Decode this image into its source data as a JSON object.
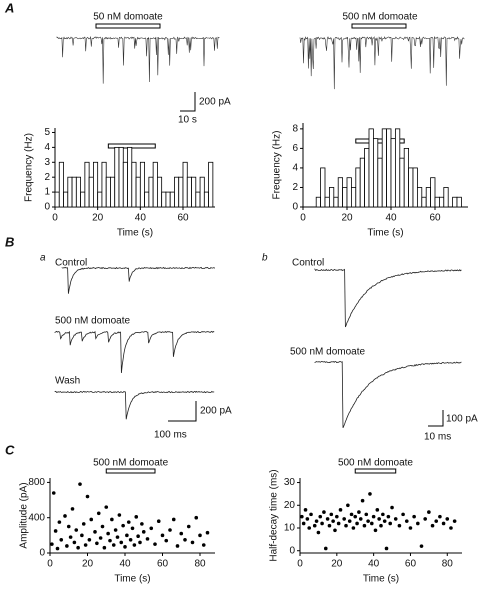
{
  "figure": {
    "panel_labels": [
      "A",
      "B",
      "C"
    ],
    "sub_labels": [
      "a",
      "b"
    ],
    "trace_labels": [
      "50 nM domoate",
      "500 nM domoate",
      "Control",
      "500 nM domoate",
      "Wash",
      "Control",
      "500 nM domoate"
    ],
    "scale_bars": [
      "200 pA",
      "10 s",
      "200 pA",
      "100 ms",
      "100 pA",
      "10 ms"
    ]
  },
  "chart_data": [
    {
      "type": "histogram",
      "x_label": "Time (s)",
      "y_label": "Frequency (Hz)",
      "bins": [
        0,
        2,
        4,
        6,
        8,
        10,
        12,
        14,
        16,
        18,
        20,
        22,
        24,
        26,
        28,
        30,
        32,
        34,
        36,
        38,
        40,
        42,
        44,
        46,
        48,
        50,
        52,
        54,
        56,
        58,
        60,
        62,
        64,
        66,
        68,
        70,
        72,
        74
      ],
      "values": [
        1,
        3,
        1,
        2,
        2,
        2,
        1,
        3,
        2,
        3,
        1,
        3,
        2,
        2,
        4,
        4,
        3,
        4,
        3,
        2,
        3,
        1,
        2,
        3,
        2,
        1,
        1,
        1,
        2,
        2,
        3,
        2,
        2,
        1,
        2,
        1,
        3
      ],
      "application": [
        25,
        47
      ],
      "xlim": [
        0,
        75
      ],
      "xticks": [
        0,
        20,
        40,
        60
      ],
      "ylim": [
        0,
        5.3
      ],
      "yticks": [
        0,
        1,
        2,
        3,
        4,
        5
      ]
    },
    {
      "type": "histogram",
      "x_label": "Time (s)",
      "y_label": "Frequency (Hz)",
      "bins": [
        0,
        2,
        4,
        6,
        8,
        10,
        12,
        14,
        16,
        18,
        20,
        22,
        24,
        26,
        28,
        30,
        32,
        34,
        36,
        38,
        40,
        42,
        44,
        46,
        48,
        50,
        52,
        54,
        56,
        58,
        60,
        62,
        64,
        66,
        68,
        70,
        72
      ],
      "values": [
        0,
        0,
        0,
        1,
        4,
        1,
        2,
        1,
        3,
        2,
        3,
        2,
        4,
        5,
        6,
        8,
        7,
        5,
        8,
        8,
        7,
        8,
        5,
        6,
        4,
        4,
        2,
        1,
        2,
        3,
        1,
        1,
        2,
        0,
        1,
        1
      ],
      "application": [
        24,
        46
      ],
      "xlim": [
        0,
        75
      ],
      "xticks": [
        0,
        20,
        40,
        60
      ],
      "ylim": [
        0,
        8.6
      ],
      "yticks": [
        0,
        2,
        4,
        6,
        8
      ]
    },
    {
      "type": "scatter",
      "x_label": "Time (s)",
      "y_label": "Amplitude (pA)",
      "annotation": "500 nM domoate",
      "application": [
        30,
        56
      ],
      "x": [
        1,
        2,
        3,
        4,
        5,
        6,
        8,
        9,
        10,
        11,
        12,
        13,
        14,
        15,
        16,
        17,
        18,
        19,
        20,
        21,
        22,
        24,
        25,
        26,
        27,
        28,
        29,
        30,
        31,
        32,
        33,
        34,
        35,
        36,
        37,
        38,
        39,
        40,
        41,
        42,
        43,
        44,
        45,
        46,
        47,
        48,
        49,
        50,
        52,
        54,
        56,
        58,
        60,
        62,
        64,
        66,
        68,
        70,
        72,
        74,
        76,
        78,
        80,
        82,
        84
      ],
      "y": [
        100,
        680,
        250,
        50,
        350,
        150,
        420,
        80,
        300,
        180,
        500,
        120,
        260,
        60,
        780,
        200,
        330,
        90,
        640,
        150,
        380,
        240,
        110,
        450,
        170,
        300,
        60,
        520,
        220,
        140,
        380,
        90,
        260,
        180,
        430,
        120,
        310,
        70,
        200,
        350,
        150,
        280,
        90,
        410,
        190,
        120,
        330,
        240,
        160,
        280,
        100,
        360,
        200,
        140,
        260,
        380,
        80,
        220,
        150,
        300,
        120,
        400,
        200,
        90,
        230
      ],
      "xlim": [
        0,
        88
      ],
      "xticks": [
        0,
        20,
        40,
        60,
        80
      ],
      "ylim": [
        0,
        850
      ],
      "yticks": [
        0,
        400,
        800
      ]
    },
    {
      "type": "scatter",
      "x_label": "Time (s)",
      "y_label": "Half-decay time (ms)",
      "annotation": "500 nM domoate",
      "application": [
        30,
        52
      ],
      "x": [
        1,
        2,
        3,
        4,
        5,
        6,
        8,
        9,
        10,
        11,
        12,
        13,
        14,
        15,
        16,
        17,
        18,
        19,
        20,
        21,
        22,
        24,
        25,
        26,
        27,
        28,
        29,
        30,
        31,
        32,
        33,
        34,
        35,
        36,
        37,
        38,
        39,
        40,
        41,
        42,
        43,
        44,
        45,
        46,
        47,
        48,
        49,
        50,
        52,
        54,
        56,
        58,
        60,
        62,
        64,
        66,
        68,
        70,
        72,
        74,
        76,
        78,
        80,
        82,
        84
      ],
      "y": [
        15,
        12,
        18,
        14,
        10,
        16,
        11,
        13,
        8,
        15,
        12,
        17,
        1,
        14,
        11,
        16,
        13,
        9,
        15,
        12,
        18,
        14,
        11,
        20,
        13,
        16,
        10,
        15,
        12,
        17,
        14,
        22,
        11,
        16,
        13,
        25,
        12,
        15,
        9,
        18,
        14,
        11,
        16,
        13,
        1,
        15,
        12,
        19,
        14,
        11,
        16,
        13,
        10,
        15,
        12,
        2,
        14,
        17,
        11,
        13,
        15,
        12,
        14,
        10,
        13
      ],
      "xlim": [
        0,
        88
      ],
      "xticks": [
        0,
        20,
        40,
        60,
        80
      ],
      "ylim": [
        -1,
        32
      ],
      "yticks": [
        0,
        10,
        20,
        30
      ]
    }
  ]
}
